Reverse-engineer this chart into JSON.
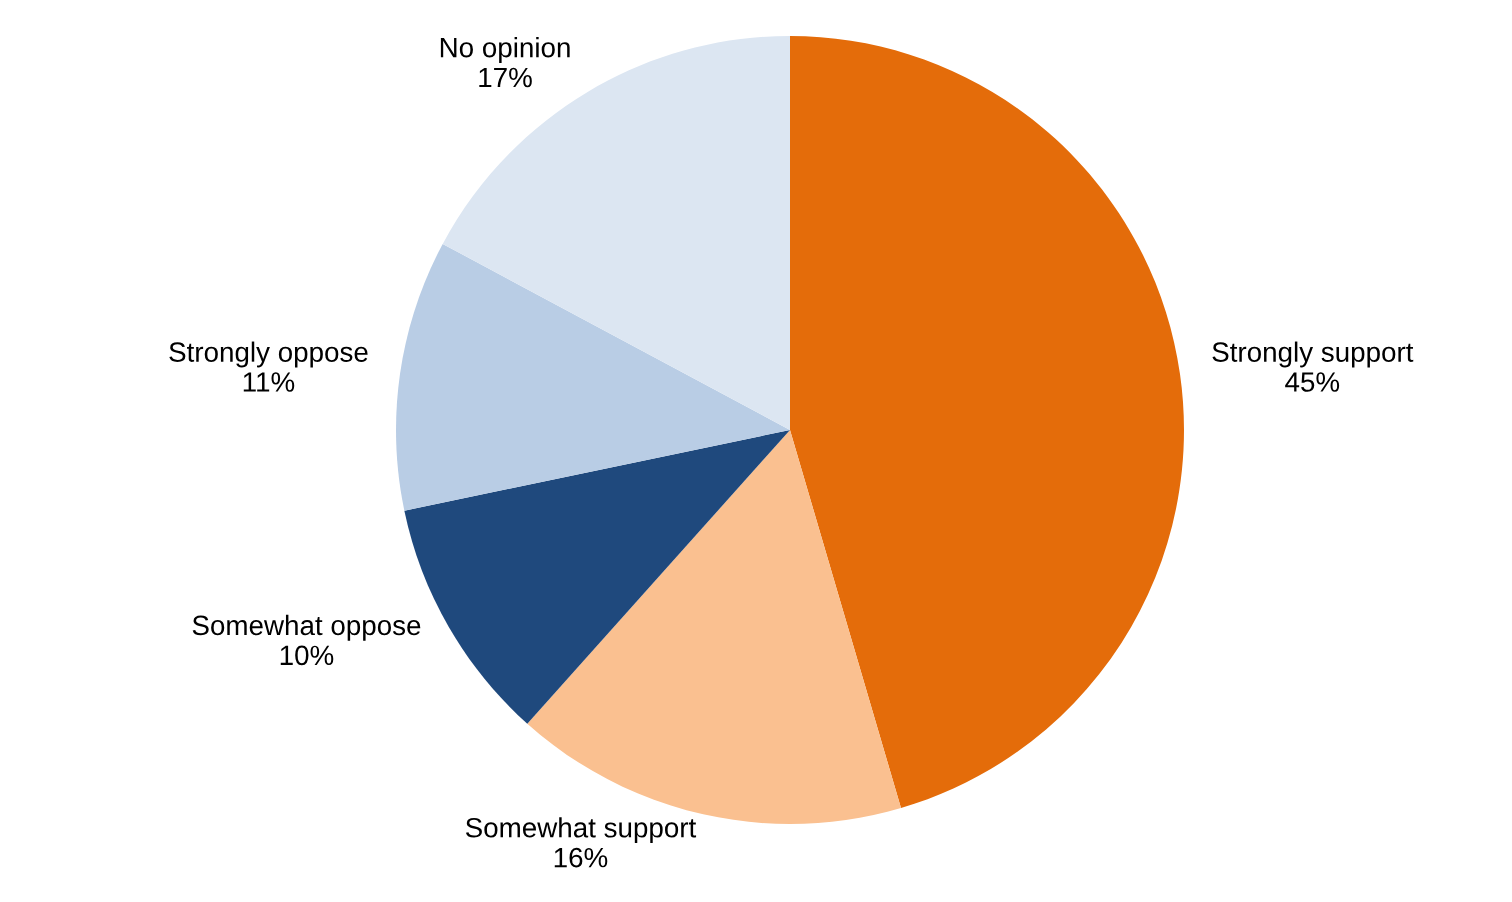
{
  "chart_data": {
    "type": "pie",
    "categories": [
      "Strongly support",
      "Somewhat support",
      "Somewhat oppose",
      "Strongly oppose",
      "No opinion"
    ],
    "values": [
      45,
      16,
      10,
      11,
      17
    ],
    "value_labels": [
      "45%",
      "16%",
      "10%",
      "11%",
      "17%"
    ],
    "colors": [
      "#e46c0a",
      "#fac090",
      "#1f497d",
      "#b9cde5",
      "#dce6f2"
    ]
  }
}
